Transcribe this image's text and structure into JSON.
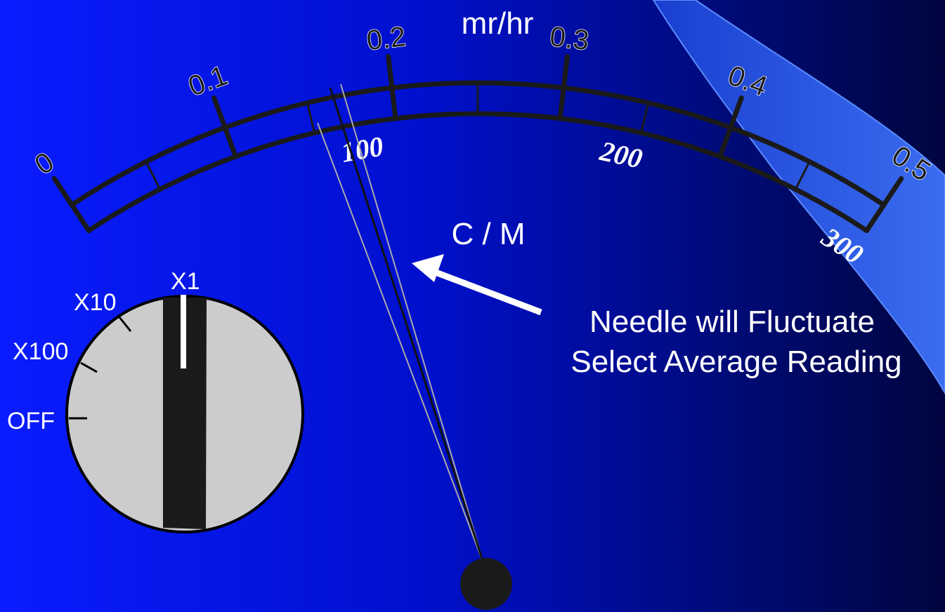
{
  "meter": {
    "unit": "mr/hr",
    "mr_scale": [
      "0",
      "0.1",
      "0.2",
      "0.3",
      "0.4",
      "0.5"
    ],
    "cpm_scale": [
      "100",
      "200",
      "300"
    ],
    "cpm_unit": "C / M"
  },
  "range_switch": {
    "positions": [
      "OFF",
      "X100",
      "X10",
      "X1"
    ]
  },
  "callout": {
    "lines": [
      "Needle will Fluctuate",
      "Select Average Reading"
    ]
  }
}
